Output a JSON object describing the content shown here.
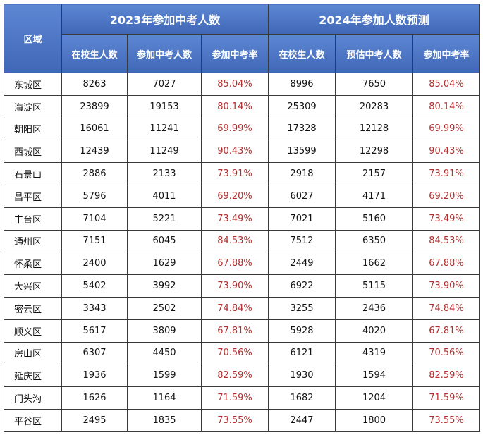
{
  "table": {
    "header": {
      "region": "区域",
      "groups": [
        "2023年参加中考人数",
        "2024年参加人数预测"
      ],
      "columns": [
        "在校生人数",
        "参加中考人数",
        "参加中考率",
        "在校生人数",
        "预估中考人数",
        "参加中考率"
      ]
    },
    "rows": [
      [
        "东城区",
        "8263",
        "7027",
        "85.04%",
        "8996",
        "7650",
        "85.04%"
      ],
      [
        "海淀区",
        "23899",
        "19153",
        "80.14%",
        "25309",
        "20283",
        "80.14%"
      ],
      [
        "朝阳区",
        "16061",
        "11241",
        "69.99%",
        "17328",
        "12128",
        "69.99%"
      ],
      [
        "西城区",
        "12439",
        "11249",
        "90.43%",
        "13599",
        "12298",
        "90.43%"
      ],
      [
        "石景山",
        "2886",
        "2133",
        "73.91%",
        "2918",
        "2157",
        "73.91%"
      ],
      [
        "昌平区",
        "5796",
        "4011",
        "69.20%",
        "6027",
        "4171",
        "69.20%"
      ],
      [
        "丰台区",
        "7104",
        "5221",
        "73.49%",
        "7021",
        "5160",
        "73.49%"
      ],
      [
        "通州区",
        "7151",
        "6045",
        "84.53%",
        "7512",
        "6350",
        "84.53%"
      ],
      [
        "怀柔区",
        "2400",
        "1629",
        "67.88%",
        "2449",
        "1662",
        "67.88%"
      ],
      [
        "大兴区",
        "5402",
        "3992",
        "73.90%",
        "6922",
        "5115",
        "73.90%"
      ],
      [
        "密云区",
        "3343",
        "2502",
        "74.84%",
        "3255",
        "2436",
        "74.84%"
      ],
      [
        "顺义区",
        "5617",
        "3809",
        "67.81%",
        "5928",
        "4020",
        "67.81%"
      ],
      [
        "房山区",
        "6307",
        "4450",
        "70.56%",
        "6121",
        "4319",
        "70.56%"
      ],
      [
        "延庆区",
        "1936",
        "1599",
        "82.59%",
        "1930",
        "1594",
        "82.59%"
      ],
      [
        "门头沟",
        "1626",
        "1164",
        "71.59%",
        "1682",
        "1204",
        "71.59%"
      ],
      [
        "平谷区",
        "2495",
        "1835",
        "73.55%",
        "2447",
        "1800",
        "73.55%"
      ]
    ]
  }
}
